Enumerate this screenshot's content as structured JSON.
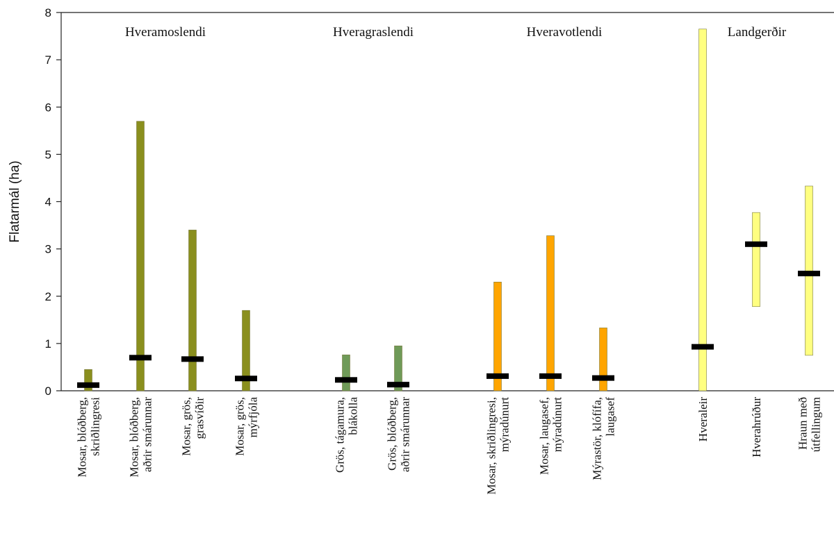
{
  "chart_data": {
    "type": "bar",
    "title": "",
    "ylabel": "Flatarmál (ha)",
    "xlabel": "",
    "ylim": [
      0,
      8
    ],
    "yticks": [
      0,
      1,
      2,
      3,
      4,
      5,
      6,
      7,
      8
    ],
    "grid": false,
    "groups": [
      {
        "name": "Hveramoslendi",
        "color": "#8a8f1e",
        "categories": [
          {
            "label": [
              "Mosar, blóðberg,",
              "skriðlingresi"
            ],
            "min": 0,
            "max": 0.45,
            "median": 0.12
          },
          {
            "label": [
              "Mosar, blóðberg,",
              "aðrir smárunnar"
            ],
            "min": 0,
            "max": 5.7,
            "median": 0.7
          },
          {
            "label": [
              "Mosar, grös,",
              "grasvíðir"
            ],
            "min": 0,
            "max": 3.4,
            "median": 0.67
          },
          {
            "label": [
              "Mosar, grös,",
              "mýrfjóla"
            ],
            "min": 0,
            "max": 1.7,
            "median": 0.26
          }
        ]
      },
      {
        "name": "Hveragraslendi",
        "color": "#6f9a58",
        "categories": [
          {
            "label": [
              "Grös, tágamura,",
              "blákolla"
            ],
            "min": 0,
            "max": 0.76,
            "median": 0.23
          },
          {
            "label": [
              "Grös, blóðberg,",
              "aðrir smárunnar"
            ],
            "min": 0,
            "max": 0.95,
            "median": 0.13
          }
        ]
      },
      {
        "name": "Hveravotlendi",
        "color": "#ffa500",
        "categories": [
          {
            "label": [
              "Mosar, skriðlingresi,",
              "mýradúnurt"
            ],
            "min": 0,
            "max": 2.3,
            "median": 0.31
          },
          {
            "label": [
              "Mosar, laugasef,",
              "mýradúnurt"
            ],
            "min": 0,
            "max": 3.28,
            "median": 0.31
          },
          {
            "label": [
              "Mýrastör, klófífa,",
              "laugasef"
            ],
            "min": 0,
            "max": 1.33,
            "median": 0.27
          }
        ]
      },
      {
        "name": "Landgerðir",
        "color": "#ffff80",
        "categories": [
          {
            "label": [
              "Hveraleir"
            ],
            "min": 0,
            "max": 7.65,
            "median": 0.93
          },
          {
            "label": [
              "Hverahrúður"
            ],
            "min": 1.78,
            "max": 3.77,
            "median": 3.1
          },
          {
            "label": [
              "Hraun með",
              "útfellingum"
            ],
            "min": 0.75,
            "max": 4.33,
            "median": 2.48
          }
        ]
      }
    ]
  }
}
